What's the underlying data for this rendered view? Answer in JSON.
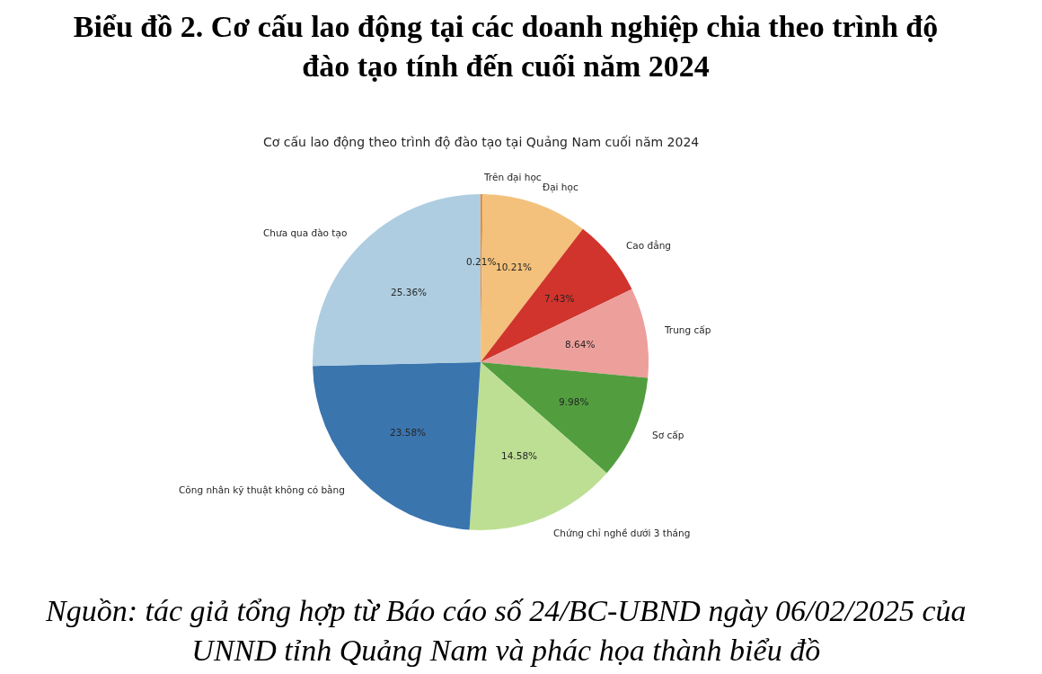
{
  "chart_data": {
    "type": "pie",
    "title": "Biểu đồ 2. Cơ cấu lao động tại các doanh nghiệp chia theo trình độ\nđào tạo tính đến cuối năm 2024",
    "subtitle": "Cơ cấu lao động theo trình độ đào tạo tại Quảng Nam cuối năm 2024",
    "categories": [
      "Trên đại học",
      "Đại học",
      "Cao đẳng",
      "Trung cấp",
      "Sơ cấp",
      "Chứng chỉ nghề dưới 3 tháng",
      "Công nhân kỹ thuật không có bằng",
      "Chưa qua đào tạo"
    ],
    "values": [
      0.21,
      10.21,
      7.43,
      8.64,
      9.98,
      14.58,
      23.58,
      25.36
    ],
    "colors": [
      "#f08a2e",
      "#f3c17b",
      "#d0342c",
      "#ed9f9c",
      "#529e3f",
      "#bddf93",
      "#3a75ae",
      "#aecde1"
    ],
    "value_labels": [
      "0.21%",
      "10.21%",
      "7.43%",
      "8.64%",
      "9.98%",
      "14.58%",
      "23.58%",
      "25.36%"
    ],
    "annotations": [
      "Nguồn: tác giả tổng hợp từ Báo cáo số 24/BC-UBND ngày 06/02/2025 của\nUNND tỉnh Quảng Nam và phác họa thành biểu đồ"
    ],
    "legend": false
  }
}
